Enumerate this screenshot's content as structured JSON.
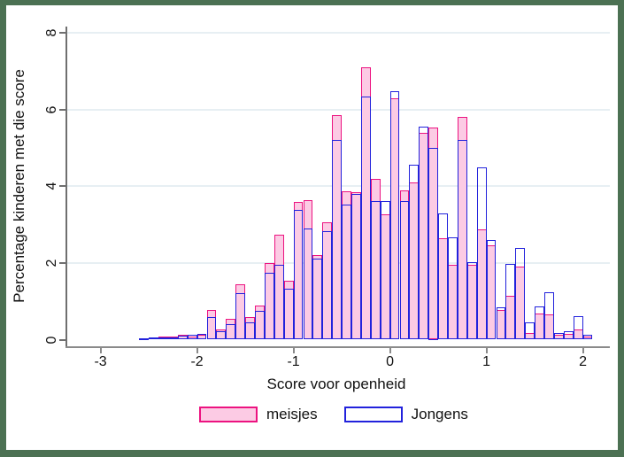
{
  "chart_data": {
    "type": "bar",
    "subtype": "overlaid-histogram",
    "title": "",
    "xlabel": "Score voor openheid",
    "ylabel": "Percentage kinderen met die score",
    "xlim": [
      -3.35,
      2.29
    ],
    "ylim": [
      0,
      8
    ],
    "xticks": [
      -3,
      -2,
      -1,
      0,
      1,
      2
    ],
    "yticks": [
      0,
      2,
      4,
      6,
      8
    ],
    "x_tick_labels": [
      "-3",
      "-2",
      "-1",
      "0",
      "1",
      "2"
    ],
    "y_tick_labels": [
      "0",
      "2",
      "4",
      "6",
      "8"
    ],
    "grid": true,
    "legend_position": "bottom",
    "bin_width": 0.1,
    "bin_starts": [
      -2.6,
      -2.5,
      -2.4,
      -2.3,
      -2.2,
      -2.1,
      -2.0,
      -1.9,
      -1.8,
      -1.7,
      -1.6,
      -1.5,
      -1.4,
      -1.3,
      -1.2,
      -1.1,
      -1.0,
      -0.9,
      -0.8,
      -0.7,
      -0.6,
      -0.5,
      -0.4,
      -0.3,
      -0.2,
      -0.1,
      0.0,
      0.1,
      0.2,
      0.3,
      0.4,
      0.5,
      0.6,
      0.7,
      0.8,
      0.9,
      1.0,
      1.1,
      1.2,
      1.3,
      1.4,
      1.5,
      1.6,
      1.7,
      1.8,
      1.9,
      2.0
    ],
    "series": [
      {
        "name": "meisjes",
        "fill_color": "#fccbe4",
        "border_color": "#ec1380",
        "values": [
          0.03,
          0.05,
          0.08,
          0.08,
          0.13,
          0.08,
          0.13,
          0.77,
          0.26,
          0.55,
          1.45,
          0.58,
          0.9,
          2.0,
          2.74,
          1.54,
          3.6,
          3.63,
          2.2,
          3.06,
          5.85,
          3.87,
          3.85,
          7.1,
          4.2,
          3.26,
          6.3,
          3.88,
          4.1,
          5.4,
          5.52,
          2.65,
          1.96,
          5.8,
          1.96,
          2.88,
          2.46,
          0.77,
          1.15,
          1.9,
          0.17,
          0.67,
          0.65,
          0.12,
          0.15,
          0.27,
          0.09
        ]
      },
      {
        "name": "Jongens",
        "fill_color": "none",
        "border_color": "#2222dc",
        "values": [
          0.03,
          0.05,
          0.05,
          0.06,
          0.1,
          0.12,
          0.16,
          0.6,
          0.22,
          0.4,
          1.22,
          0.44,
          0.76,
          1.75,
          1.94,
          1.33,
          3.38,
          2.9,
          2.12,
          2.82,
          5.2,
          3.53,
          3.8,
          6.35,
          3.62,
          3.62,
          6.48,
          3.62,
          4.55,
          5.55,
          5.0,
          3.3,
          2.66,
          5.2,
          2.01,
          4.5,
          2.59,
          0.85,
          1.97,
          2.4,
          0.46,
          0.86,
          1.23,
          0.18,
          0.23,
          0.61,
          0.13
        ]
      }
    ],
    "colors": {
      "frame_border": "#4c7153",
      "background": "#ffffff",
      "gridline": "#e7eff3",
      "axis_line": "#8a8a8a",
      "text": "#111111"
    }
  }
}
